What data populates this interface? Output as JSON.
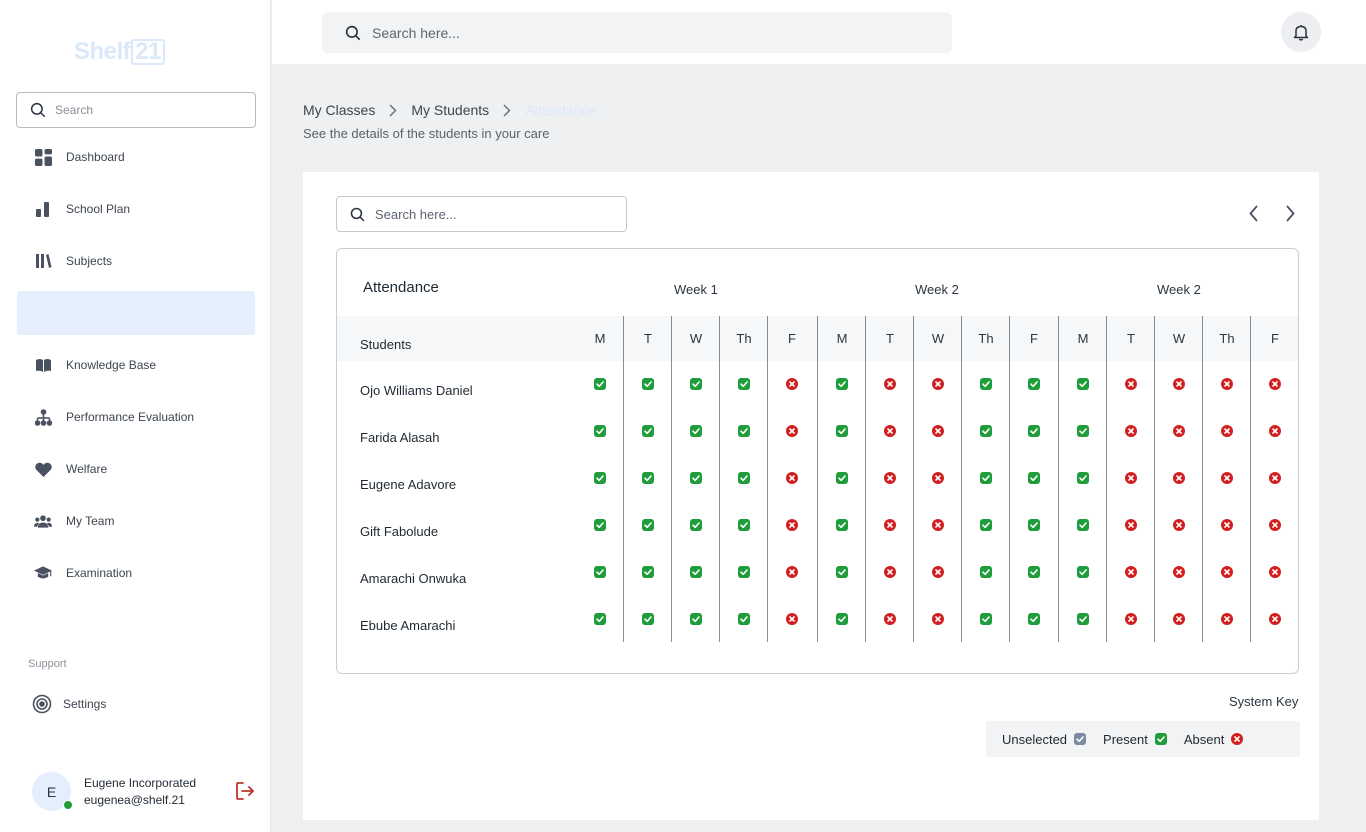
{
  "app": {
    "logo_text": "Shelf",
    "logo_num": "21"
  },
  "sidebar": {
    "search_placeholder": "Search",
    "items": [
      {
        "label": "Dashboard",
        "icon": "grid-icon"
      },
      {
        "label": "School Plan",
        "icon": "bar-chart-icon"
      },
      {
        "label": "Subjects",
        "icon": "books-icon"
      },
      {
        "label": "",
        "icon": "",
        "active": true
      },
      {
        "label": "Knowledge Base",
        "icon": "open-book-icon"
      },
      {
        "label": "Performance Evaluation",
        "icon": "hierarchy-icon"
      },
      {
        "label": "Welfare",
        "icon": "heart-icon"
      },
      {
        "label": "My Team",
        "icon": "team-icon"
      },
      {
        "label": "Examination",
        "icon": "graduation-cap-icon"
      }
    ],
    "support_label": "Support",
    "settings_label": "Settings",
    "user": {
      "initial": "E",
      "name": "Eugene Incorporated",
      "email": "eugenea@shelf.21"
    }
  },
  "topbar": {
    "search_placeholder": "Search here..."
  },
  "breadcrumb": {
    "items": [
      "My Classes",
      "My Students",
      "Attendance"
    ],
    "subtitle": "See the details of the students in your care"
  },
  "card": {
    "search_placeholder": "Search here...",
    "table": {
      "title": "Attendance",
      "students_header": "Students",
      "weeks": [
        "Week 1",
        "Week 2",
        "Week 2"
      ],
      "days": [
        "M",
        "T",
        "W",
        "Th",
        "F",
        "M",
        "T",
        "W",
        "Th",
        "F",
        "M",
        "T",
        "W",
        "Th",
        "F"
      ],
      "rows": [
        {
          "name": "Ojo Williams Daniel",
          "marks": [
            "P",
            "P",
            "P",
            "P",
            "A",
            "P",
            "A",
            "A",
            "P",
            "P",
            "P",
            "A",
            "A",
            "A",
            "A"
          ]
        },
        {
          "name": "Farida Alasah",
          "marks": [
            "P",
            "P",
            "P",
            "P",
            "A",
            "P",
            "A",
            "A",
            "P",
            "P",
            "P",
            "A",
            "A",
            "A",
            "A"
          ]
        },
        {
          "name": "Eugene Adavore",
          "marks": [
            "P",
            "P",
            "P",
            "P",
            "A",
            "P",
            "A",
            "A",
            "P",
            "P",
            "P",
            "A",
            "A",
            "A",
            "A"
          ]
        },
        {
          "name": "Gift Fabolude",
          "marks": [
            "P",
            "P",
            "P",
            "P",
            "A",
            "P",
            "A",
            "A",
            "P",
            "P",
            "P",
            "A",
            "A",
            "A",
            "A"
          ]
        },
        {
          "name": "Amarachi Onwuka",
          "marks": [
            "P",
            "P",
            "P",
            "P",
            "A",
            "P",
            "A",
            "A",
            "P",
            "P",
            "P",
            "A",
            "A",
            "A",
            "A"
          ]
        },
        {
          "name": "Ebube Amarachi",
          "marks": [
            "P",
            "P",
            "P",
            "P",
            "A",
            "P",
            "A",
            "A",
            "P",
            "P",
            "P",
            "A",
            "A",
            "A",
            "A"
          ]
        }
      ]
    },
    "system_key": {
      "title": "System Key",
      "items": [
        {
          "label": "Unselected",
          "state": "unselected"
        },
        {
          "label": "Present",
          "state": "present"
        },
        {
          "label": "Absent",
          "state": "absent"
        }
      ]
    }
  },
  "colors": {
    "present": "#1f9d3a",
    "absent": "#d11f1f",
    "unselected": "#7d8aa3",
    "active_nav": "#e4eefd",
    "logout": "#c0322b"
  }
}
